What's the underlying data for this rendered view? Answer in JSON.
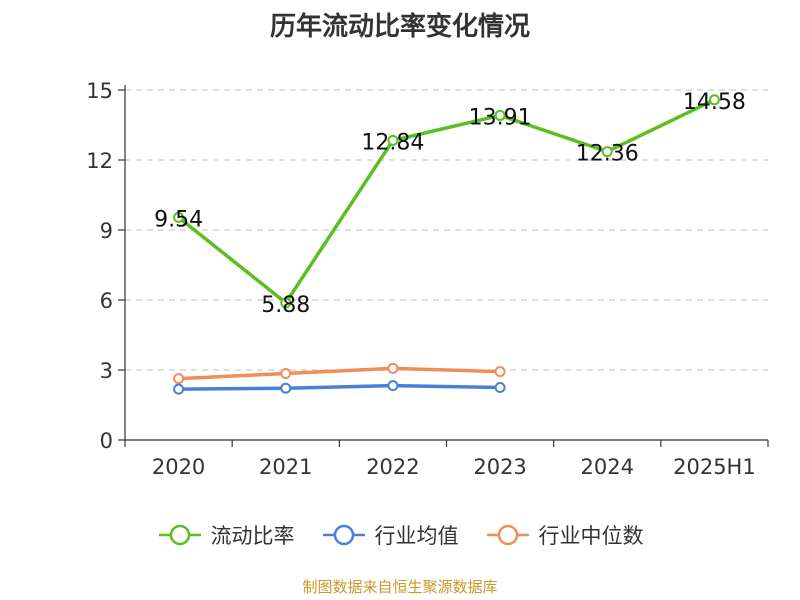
{
  "title": "历年流动比率变化情况",
  "source": "制图数据来自恒生聚源数据库",
  "chart_data": {
    "type": "line",
    "title": "历年流动比率变化情况",
    "categories": [
      "2020",
      "2021",
      "2022",
      "2023",
      "2024",
      "2025H1"
    ],
    "ylim": [
      0,
      15
    ],
    "yticks": [
      0,
      3,
      6,
      9,
      12,
      15
    ],
    "grid": true,
    "legend_position": "bottom",
    "series": [
      {
        "name": "流动比率",
        "color": "#5bbf21",
        "values": [
          9.54,
          5.88,
          12.84,
          13.91,
          12.36,
          14.58
        ],
        "labels": [
          "9.54",
          "5.88",
          "12.84",
          "13.91",
          "12.36",
          "14.58"
        ]
      },
      {
        "name": "行业均值",
        "color": "#4a7fd6",
        "values": [
          2.18,
          2.22,
          2.33,
          2.25,
          null,
          null
        ]
      },
      {
        "name": "行业中位数",
        "color": "#f28c5a",
        "values": [
          2.63,
          2.85,
          3.07,
          2.93,
          null,
          null
        ]
      }
    ]
  }
}
